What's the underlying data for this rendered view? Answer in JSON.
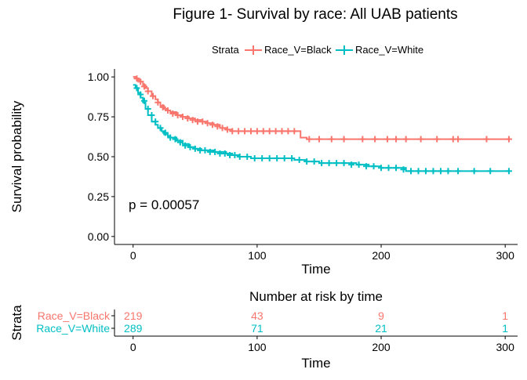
{
  "chart_data": [
    {
      "type": "line",
      "title": "Figure 1- Survival by race: All UAB patients",
      "xlabel": "Time",
      "ylabel": "Survival probability",
      "xlim": [
        -15,
        310
      ],
      "ylim": [
        -0.05,
        1.05
      ],
      "xticks": [
        0,
        100,
        200,
        300
      ],
      "yticks": [
        0.0,
        0.25,
        0.5,
        0.75,
        1.0
      ],
      "ytick_labels": [
        "0.00",
        "0.25",
        "0.50",
        "0.75",
        "1.00"
      ],
      "grid": false,
      "legend": {
        "title": "Strata",
        "position": "top"
      },
      "annotation": "p = 0.00057",
      "series": [
        {
          "name": "Race_V=Black",
          "color": "#F8766D",
          "x": [
            0,
            2,
            4,
            6,
            8,
            10,
            12,
            15,
            18,
            20,
            22,
            25,
            28,
            30,
            35,
            40,
            45,
            50,
            55,
            60,
            65,
            70,
            75,
            80,
            85,
            90,
            95,
            100,
            110,
            120,
            130,
            135,
            140,
            150,
            160,
            180,
            200,
            220,
            250,
            280,
            303
          ],
          "y": [
            1.0,
            0.99,
            0.98,
            0.97,
            0.95,
            0.93,
            0.91,
            0.88,
            0.86,
            0.84,
            0.82,
            0.8,
            0.79,
            0.78,
            0.76,
            0.75,
            0.74,
            0.73,
            0.72,
            0.71,
            0.7,
            0.68,
            0.67,
            0.66,
            0.66,
            0.66,
            0.66,
            0.66,
            0.66,
            0.66,
            0.66,
            0.62,
            0.61,
            0.61,
            0.61,
            0.61,
            0.61,
            0.61,
            0.61,
            0.61,
            0.61
          ],
          "censor_x": [
            3,
            6,
            9,
            12,
            16,
            20,
            24,
            28,
            32,
            36,
            40,
            44,
            48,
            52,
            56,
            60,
            64,
            68,
            72,
            76,
            80,
            85,
            90,
            95,
            100,
            105,
            110,
            115,
            120,
            125,
            130,
            142,
            150,
            160,
            170,
            185,
            195,
            205,
            212,
            220,
            232,
            245,
            258,
            262,
            285,
            303
          ],
          "censor_y": [
            0.99,
            0.97,
            0.94,
            0.91,
            0.88,
            0.84,
            0.81,
            0.79,
            0.77,
            0.76,
            0.75,
            0.74,
            0.73,
            0.72,
            0.72,
            0.71,
            0.7,
            0.69,
            0.68,
            0.67,
            0.66,
            0.66,
            0.66,
            0.66,
            0.66,
            0.66,
            0.66,
            0.66,
            0.66,
            0.66,
            0.66,
            0.61,
            0.61,
            0.61,
            0.61,
            0.61,
            0.61,
            0.61,
            0.61,
            0.61,
            0.61,
            0.61,
            0.61,
            0.61,
            0.61,
            0.61
          ]
        },
        {
          "name": "Race_V=White",
          "color": "#00BFC4",
          "x": [
            0,
            2,
            4,
            6,
            8,
            10,
            12,
            15,
            18,
            20,
            23,
            25,
            28,
            30,
            35,
            40,
            45,
            50,
            55,
            60,
            65,
            70,
            75,
            80,
            85,
            90,
            95,
            100,
            110,
            120,
            130,
            140,
            150,
            160,
            170,
            180,
            190,
            200,
            210,
            220,
            230,
            250,
            270,
            290,
            303
          ],
          "y": [
            0.95,
            0.93,
            0.9,
            0.87,
            0.84,
            0.8,
            0.76,
            0.72,
            0.7,
            0.68,
            0.66,
            0.64,
            0.63,
            0.62,
            0.6,
            0.58,
            0.56,
            0.55,
            0.54,
            0.54,
            0.53,
            0.53,
            0.52,
            0.51,
            0.5,
            0.5,
            0.49,
            0.49,
            0.49,
            0.49,
            0.48,
            0.47,
            0.46,
            0.46,
            0.46,
            0.45,
            0.44,
            0.43,
            0.43,
            0.41,
            0.41,
            0.41,
            0.41,
            0.41,
            0.41
          ],
          "censor_x": [
            3,
            6,
            9,
            12,
            15,
            18,
            22,
            26,
            30,
            34,
            38,
            42,
            46,
            50,
            54,
            58,
            62,
            66,
            70,
            74,
            78,
            82,
            86,
            92,
            98,
            104,
            110,
            116,
            122,
            128,
            134,
            140,
            146,
            152,
            158,
            164,
            170,
            176,
            182,
            188,
            194,
            200,
            206,
            212,
            218,
            224,
            230,
            236,
            242,
            248,
            254,
            262,
            275,
            288,
            303
          ],
          "censor_y": [
            0.93,
            0.89,
            0.85,
            0.8,
            0.76,
            0.72,
            0.68,
            0.65,
            0.62,
            0.61,
            0.59,
            0.57,
            0.56,
            0.55,
            0.54,
            0.54,
            0.53,
            0.53,
            0.52,
            0.52,
            0.51,
            0.51,
            0.5,
            0.5,
            0.49,
            0.49,
            0.49,
            0.49,
            0.49,
            0.49,
            0.48,
            0.47,
            0.47,
            0.46,
            0.46,
            0.46,
            0.46,
            0.45,
            0.45,
            0.44,
            0.44,
            0.43,
            0.43,
            0.43,
            0.42,
            0.41,
            0.41,
            0.41,
            0.41,
            0.41,
            0.41,
            0.41,
            0.41,
            0.41,
            0.41
          ]
        }
      ]
    },
    {
      "type": "table",
      "title": "Number at risk by time",
      "xlabel": "Time",
      "ylabel": "Strata",
      "xlim": [
        -15,
        310
      ],
      "xticks": [
        0,
        100,
        200,
        300
      ],
      "rows": [
        {
          "label": "Race_V=Black",
          "color": "#F8766D",
          "values": [
            219,
            43,
            9,
            1
          ]
        },
        {
          "label": "Race_V=White",
          "color": "#00BFC4",
          "values": [
            289,
            71,
            21,
            1
          ]
        }
      ]
    }
  ]
}
